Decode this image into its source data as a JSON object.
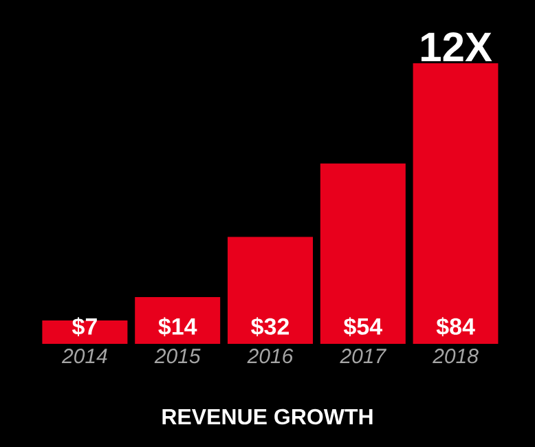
{
  "chart_data": {
    "type": "bar",
    "title": "REVENUE GROWTH",
    "categories": [
      "2014",
      "2015",
      "2016",
      "2017",
      "2018"
    ],
    "values": [
      7,
      14,
      32,
      54,
      84
    ],
    "value_labels": [
      "$7",
      "$14",
      "$32",
      "$54",
      "$84"
    ],
    "color": "#e8001c",
    "annotations": [
      {
        "text": "12X",
        "x": "2018",
        "y": 84
      }
    ]
  }
}
